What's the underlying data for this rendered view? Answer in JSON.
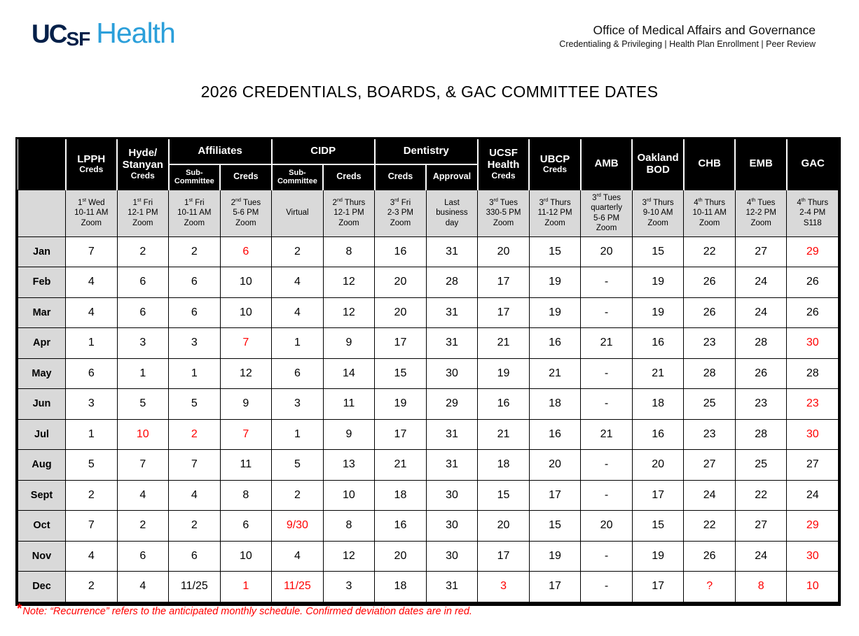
{
  "logo": {
    "uc": "UC",
    "sf": "SF",
    "health": "Health"
  },
  "office": {
    "title": "Office of Medical Affairs and Governance",
    "subtitle": "Credentialing & Privileging | Health Plan Enrollment | Peer Review"
  },
  "title": "2026 CREDENTIALS, BOARDS, & GAC COMMITTEE DATES",
  "table": {
    "corner": "",
    "groups": [
      {
        "id": "lpph",
        "label": "LPPH",
        "sub": "Creds",
        "span": 1
      },
      {
        "id": "hyde-stanyan",
        "label": "Hyde/\nStanyan",
        "sub": "Creds",
        "span": 1
      },
      {
        "id": "affiliates",
        "label": "Affiliates",
        "span": 2
      },
      {
        "id": "cidp",
        "label": "CIDP",
        "span": 2
      },
      {
        "id": "dentistry",
        "label": "Dentistry",
        "span": 2
      },
      {
        "id": "ucsf-health",
        "label": "UCSF\nHealth",
        "sub": "Creds",
        "span": 1
      },
      {
        "id": "ubcp",
        "label": "UBCP",
        "sub": "Creds",
        "span": 1
      },
      {
        "id": "amb",
        "label": "AMB",
        "span": 1
      },
      {
        "id": "oakland-bod",
        "label": "Oakland\nBOD",
        "span": 1
      },
      {
        "id": "chb",
        "label": "CHB",
        "span": 1
      },
      {
        "id": "emb",
        "label": "EMB",
        "span": 1
      },
      {
        "id": "gac",
        "label": "GAC",
        "span": 1
      }
    ],
    "subheaders": [
      {
        "id": "affiliates-sub-committee",
        "label": "Sub-\nCommittee"
      },
      {
        "id": "affiliates-creds",
        "label": "Creds"
      },
      {
        "id": "cidp-sub-committee",
        "label": "Sub-\nCommittee"
      },
      {
        "id": "cidp-creds",
        "label": "Creds"
      },
      {
        "id": "dentistry-creds",
        "label": "Creds"
      },
      {
        "id": "dentistry-approval",
        "label": "Approval"
      }
    ],
    "recurrence": [
      "1st Wed\n10-11 AM\nZoom",
      "1st Fri\n12-1 PM\nZoom",
      "1st Fri\n10-11 AM\nZoom",
      "2nd Tues\n5-6 PM\nZoom",
      "Virtual",
      "2nd Thurs\n12-1 PM\nZoom",
      "3rd Fri\n2-3 PM\nZoom",
      "Last\nbusiness\nday",
      "3rd Tues\n330-5 PM\nZoom",
      "3rd Thurs\n11-12 PM\nZoom",
      "3rd Tues\nquarterly\n5-6 PM\nZoom",
      "3rd Thurs\n9-10 AM\nZoom",
      "4th Thurs\n10-11 AM\nZoom",
      "4th Tues\n12-2 PM\nZoom",
      "4th Thurs\n2-4 PM\nS118"
    ],
    "rows": [
      {
        "month": "Jan",
        "values": [
          "7",
          "2",
          "2",
          "6",
          "2",
          "8",
          "16",
          "31",
          "20",
          "15",
          "20",
          "15",
          "22",
          "27",
          "29"
        ],
        "red": [
          3,
          14
        ]
      },
      {
        "month": "Feb",
        "values": [
          "4",
          "6",
          "6",
          "10",
          "4",
          "12",
          "20",
          "28",
          "17",
          "19",
          "-",
          "19",
          "26",
          "24",
          "26"
        ],
        "red": []
      },
      {
        "month": "Mar",
        "values": [
          "4",
          "6",
          "6",
          "10",
          "4",
          "12",
          "20",
          "31",
          "17",
          "19",
          "-",
          "19",
          "26",
          "24",
          "26"
        ],
        "red": []
      },
      {
        "month": "Apr",
        "values": [
          "1",
          "3",
          "3",
          "7",
          "1",
          "9",
          "17",
          "31",
          "21",
          "16",
          "21",
          "16",
          "23",
          "28",
          "30"
        ],
        "red": [
          3,
          14
        ]
      },
      {
        "month": "May",
        "values": [
          "6",
          "1",
          "1",
          "12",
          "6",
          "14",
          "15",
          "30",
          "19",
          "21",
          "-",
          "21",
          "28",
          "26",
          "28"
        ],
        "red": []
      },
      {
        "month": "Jun",
        "values": [
          "3",
          "5",
          "5",
          "9",
          "3",
          "11",
          "19",
          "29",
          "16",
          "18",
          "-",
          "18",
          "25",
          "23",
          "23"
        ],
        "red": [
          14
        ]
      },
      {
        "month": "Jul",
        "values": [
          "1",
          "10",
          "2",
          "7",
          "1",
          "9",
          "17",
          "31",
          "21",
          "16",
          "21",
          "16",
          "23",
          "28",
          "30"
        ],
        "red": [
          1,
          2,
          3,
          14
        ]
      },
      {
        "month": "Aug",
        "values": [
          "5",
          "7",
          "7",
          "11",
          "5",
          "13",
          "21",
          "31",
          "18",
          "20",
          "-",
          "20",
          "27",
          "25",
          "27"
        ],
        "red": []
      },
      {
        "month": "Sept",
        "values": [
          "2",
          "4",
          "4",
          "8",
          "2",
          "10",
          "18",
          "30",
          "15",
          "17",
          "-",
          "17",
          "24",
          "22",
          "24"
        ],
        "red": []
      },
      {
        "month": "Oct",
        "values": [
          "7",
          "2",
          "2",
          "6",
          "9/30",
          "8",
          "16",
          "30",
          "20",
          "15",
          "20",
          "15",
          "22",
          "27",
          "29"
        ],
        "red": [
          4,
          14
        ]
      },
      {
        "month": "Nov",
        "values": [
          "4",
          "6",
          "6",
          "10",
          "4",
          "12",
          "20",
          "30",
          "17",
          "19",
          "-",
          "19",
          "26",
          "24",
          "30"
        ],
        "red": [
          14
        ]
      },
      {
        "month": "Dec",
        "values": [
          "2",
          "4",
          "11/25",
          "1",
          "11/25",
          "3",
          "18",
          "31",
          "3",
          "17",
          "-",
          "17",
          "?",
          "8",
          "10"
        ],
        "red": [
          3,
          4,
          8,
          12,
          13,
          14
        ]
      }
    ]
  },
  "footnote": {
    "asterisk": "*",
    "text": "Note: “Recurrence” refers to the anticipated monthly schedule. Confirmed deviation dates are in red."
  },
  "colors": {
    "header_bg": "#000000",
    "header_text": "#ffffff",
    "shaded_cell": "#d9d9d9",
    "deviation_red": "#ff0000",
    "logo_navy": "#052049",
    "logo_blue": "#2b9fda"
  }
}
